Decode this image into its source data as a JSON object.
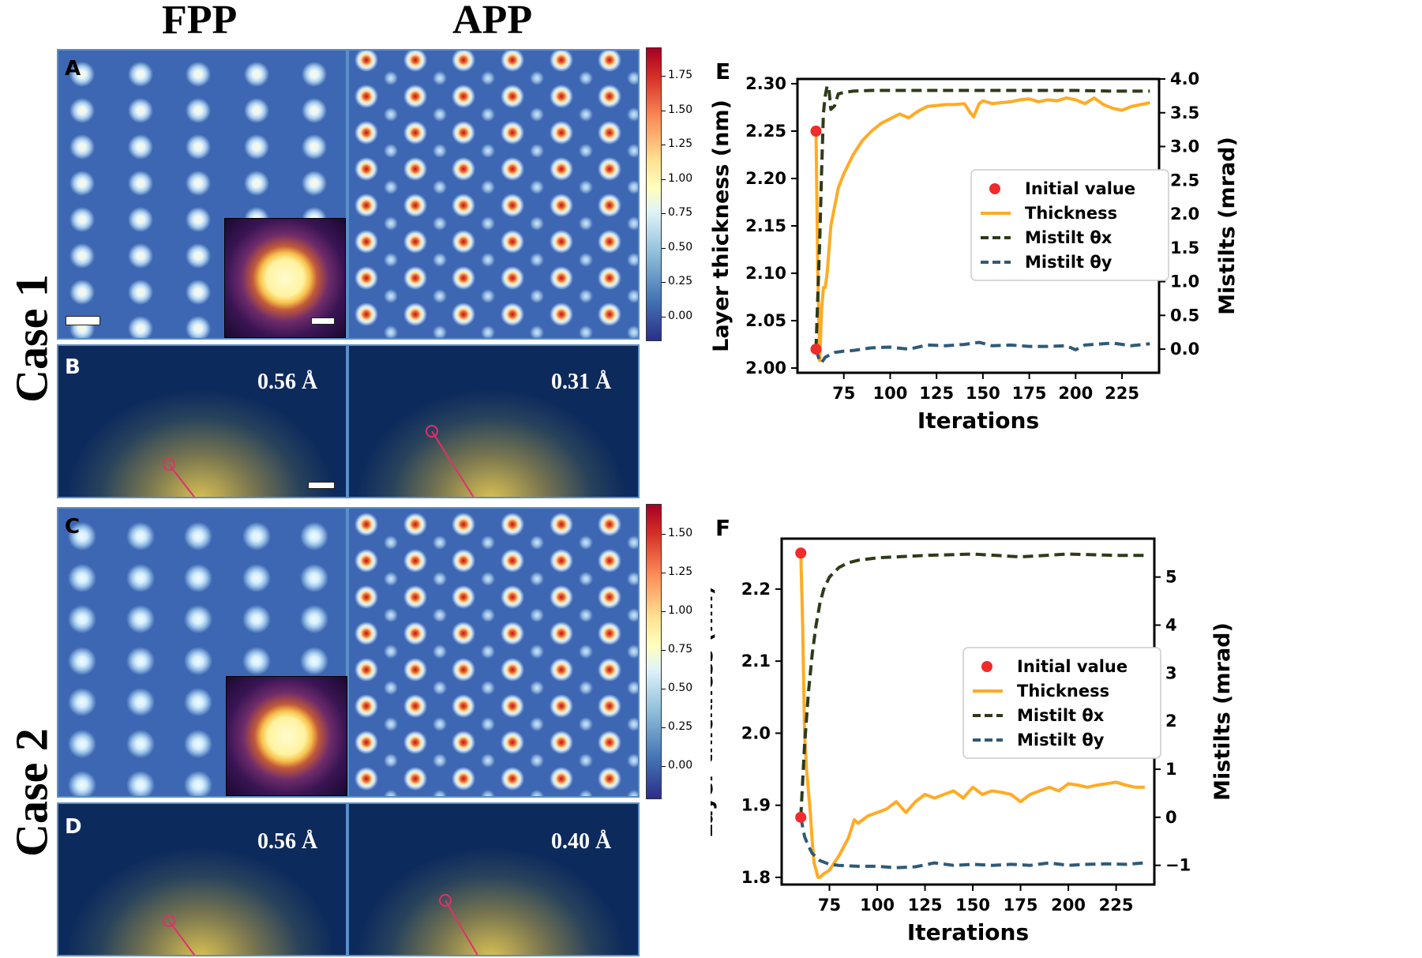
{
  "headers": {
    "fpp": "FPP",
    "app": "APP",
    "case1": "Case 1",
    "case2": "Case 2"
  },
  "panels": {
    "A": {
      "letter": "A"
    },
    "B": {
      "letter": "B",
      "fpp_res": "0.56 Å",
      "app_res": "0.31 Å"
    },
    "C": {
      "letter": "C"
    },
    "D": {
      "letter": "D",
      "fpp_res": "0.56 Å",
      "app_res": "0.40 Å"
    }
  },
  "colorbars": {
    "top": {
      "ticks": [
        "1.75",
        "1.50",
        "1.25",
        "1.00",
        "0.75",
        "0.50",
        "0.25",
        "0.00"
      ]
    },
    "bottom": {
      "ticks": [
        "1.50",
        "1.25",
        "1.00",
        "0.75",
        "0.50",
        "0.25",
        "0.00"
      ]
    }
  },
  "chart_data": [
    {
      "id": "E",
      "type": "line",
      "panel_letter": "E",
      "xlabel": "Iterations",
      "ylabel": "Layer thickness (nm)",
      "y2label": "Mistilts (mrad)",
      "xlim": [
        50,
        245
      ],
      "ylim": [
        1.995,
        2.305
      ],
      "y2lim": [
        -0.35,
        4.0
      ],
      "xticks": [
        "75",
        "100",
        "125",
        "150",
        "175",
        "200",
        "225"
      ],
      "yticks": [
        "2.00",
        "2.05",
        "2.10",
        "2.15",
        "2.20",
        "2.25",
        "2.30"
      ],
      "y2ticks": [
        "0.0",
        "0.5",
        "1.0",
        "1.5",
        "2.0",
        "2.5",
        "3.0",
        "3.5",
        "4.0"
      ],
      "legend_position": "center-right",
      "legend": [
        "Initial value",
        "Thickness",
        "Mistilt θx",
        "Mistilt θy"
      ],
      "colors": {
        "initial": "#ef2b2b",
        "thickness": "#ffab24",
        "mistilt_x": "#2d3b18",
        "mistilt_y": "#2f5a78"
      },
      "initial_points": [
        {
          "axis": "left",
          "x": 60,
          "y": 2.25
        },
        {
          "axis": "right",
          "x": 60,
          "y": 0.0
        }
      ],
      "series": [
        {
          "name": "Thickness",
          "axis": "left",
          "style": "solid",
          "x": [
            60,
            61,
            62,
            63,
            64,
            65,
            66,
            68,
            70,
            72,
            75,
            80,
            85,
            90,
            95,
            100,
            105,
            110,
            115,
            120,
            125,
            130,
            135,
            140,
            143,
            145,
            148,
            150,
            155,
            160,
            165,
            170,
            175,
            180,
            185,
            190,
            195,
            200,
            205,
            210,
            215,
            220,
            225,
            230,
            235,
            240
          ],
          "y": [
            2.25,
            2.1,
            2.008,
            2.06,
            2.085,
            2.085,
            2.1,
            2.15,
            2.17,
            2.19,
            2.205,
            2.225,
            2.24,
            2.25,
            2.258,
            2.263,
            2.268,
            2.264,
            2.271,
            2.276,
            2.277,
            2.278,
            2.278,
            2.279,
            2.27,
            2.265,
            2.279,
            2.282,
            2.279,
            2.28,
            2.281,
            2.283,
            2.284,
            2.281,
            2.283,
            2.282,
            2.285,
            2.283,
            2.279,
            2.285,
            2.278,
            2.274,
            2.272,
            2.276,
            2.278,
            2.28
          ]
        },
        {
          "name": "Mistilt θx",
          "axis": "right",
          "style": "dashed",
          "x": [
            60,
            61,
            62,
            63,
            64,
            65,
            66,
            67,
            68,
            70,
            72,
            75,
            80,
            90,
            100,
            120,
            150,
            175,
            200,
            220,
            240
          ],
          "y": [
            0.0,
            0.8,
            1.6,
            2.6,
            3.5,
            3.75,
            3.9,
            3.85,
            3.55,
            3.6,
            3.78,
            3.8,
            3.82,
            3.83,
            3.83,
            3.83,
            3.83,
            3.83,
            3.83,
            3.82,
            3.82
          ]
        },
        {
          "name": "Mistilt θy",
          "axis": "right",
          "style": "dashed",
          "x": [
            60,
            62,
            63,
            65,
            70,
            75,
            80,
            90,
            100,
            110,
            120,
            130,
            140,
            148,
            155,
            165,
            175,
            185,
            195,
            200,
            205,
            210,
            220,
            230,
            240
          ],
          "y": [
            0.0,
            -0.18,
            -0.2,
            -0.12,
            -0.05,
            -0.03,
            -0.02,
            0.02,
            0.03,
            0.0,
            0.06,
            0.05,
            0.07,
            0.1,
            0.05,
            0.06,
            0.04,
            0.04,
            0.05,
            -0.01,
            0.06,
            0.07,
            0.09,
            0.05,
            0.08
          ]
        }
      ]
    },
    {
      "id": "F",
      "type": "line",
      "panel_letter": "F",
      "xlabel": "Iterations",
      "ylabel": "Layer thickness (nm)",
      "y2label": "Mistilts (mrad)",
      "xlim": [
        50,
        245
      ],
      "ylim": [
        1.79,
        2.27
      ],
      "y2lim": [
        -1.4,
        5.8
      ],
      "xticks": [
        "75",
        "100",
        "125",
        "150",
        "175",
        "200",
        "225"
      ],
      "yticks": [
        "1.8",
        "1.9",
        "2.0",
        "2.1",
        "2.2"
      ],
      "y2ticks": [
        "−1",
        "0",
        "1",
        "2",
        "3",
        "4",
        "5"
      ],
      "legend_position": "center-right",
      "legend": [
        "Initial value",
        "Thickness",
        "Mistilt θx",
        "Mistilt θy"
      ],
      "colors": {
        "initial": "#ef2b2b",
        "thickness": "#ffab24",
        "mistilt_x": "#2d3b18",
        "mistilt_y": "#2f5a78"
      },
      "initial_points": [
        {
          "axis": "left",
          "x": 60,
          "y": 2.25
        },
        {
          "axis": "right",
          "x": 60,
          "y": 0.0
        }
      ],
      "series": [
        {
          "name": "Thickness",
          "axis": "left",
          "style": "solid",
          "x": [
            60,
            61,
            62,
            63,
            64,
            65,
            66,
            67,
            68,
            69,
            70,
            72,
            75,
            80,
            85,
            88,
            90,
            95,
            100,
            105,
            110,
            115,
            120,
            125,
            130,
            135,
            140,
            145,
            150,
            155,
            160,
            165,
            170,
            175,
            180,
            185,
            190,
            195,
            200,
            205,
            210,
            215,
            220,
            225,
            230,
            235,
            240
          ],
          "y": [
            2.25,
            2.15,
            2.0,
            1.95,
            1.92,
            1.89,
            1.85,
            1.82,
            1.81,
            1.8,
            1.8,
            1.805,
            1.81,
            1.83,
            1.855,
            1.88,
            1.875,
            1.885,
            1.89,
            1.895,
            1.905,
            1.89,
            1.905,
            1.915,
            1.91,
            1.915,
            1.92,
            1.91,
            1.925,
            1.915,
            1.92,
            1.918,
            1.915,
            1.905,
            1.915,
            1.92,
            1.925,
            1.92,
            1.93,
            1.928,
            1.925,
            1.928,
            1.93,
            1.932,
            1.928,
            1.925,
            1.925
          ]
        },
        {
          "name": "Mistilt θx",
          "axis": "right",
          "style": "dashed",
          "x": [
            60,
            62,
            64,
            66,
            68,
            70,
            72,
            75,
            80,
            85,
            90,
            100,
            110,
            125,
            150,
            175,
            200,
            225,
            240
          ],
          "y": [
            0.0,
            1.5,
            2.6,
            3.4,
            4.0,
            4.45,
            4.75,
            5.0,
            5.2,
            5.3,
            5.35,
            5.4,
            5.42,
            5.45,
            5.48,
            5.42,
            5.48,
            5.45,
            5.45
          ]
        },
        {
          "name": "Mistilt θy",
          "axis": "right",
          "style": "dashed",
          "x": [
            60,
            62,
            64,
            66,
            70,
            75,
            80,
            90,
            100,
            110,
            120,
            130,
            140,
            150,
            160,
            170,
            180,
            190,
            200,
            210,
            220,
            230,
            240
          ],
          "y": [
            0.0,
            -0.4,
            -0.6,
            -0.75,
            -0.9,
            -0.98,
            -1.0,
            -1.02,
            -1.02,
            -1.05,
            -1.03,
            -0.95,
            -1.0,
            -0.98,
            -1.0,
            -0.98,
            -1.0,
            -0.95,
            -1.0,
            -0.98,
            -0.97,
            -0.98,
            -0.95
          ]
        }
      ]
    }
  ]
}
